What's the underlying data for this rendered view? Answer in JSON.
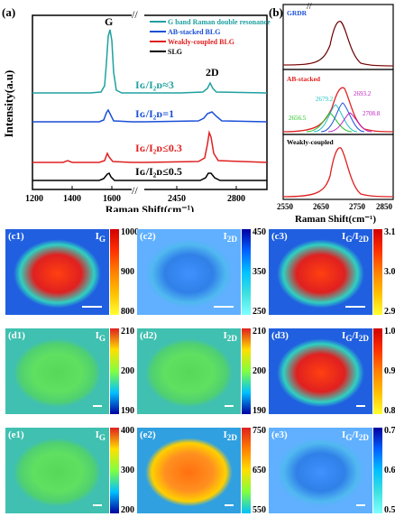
{
  "panel_a": {
    "label": "(a)",
    "ylabel": "Intensity(a.u)",
    "xlabel": "Raman Shift(cm⁻¹)",
    "xticks": [
      "1200",
      "1400",
      "1600",
      "2450",
      "2800"
    ],
    "peak_g": "G",
    "peak_2d": "2D",
    "break_mark": "//",
    "legend": [
      {
        "text": "G band Raman double resonance",
        "color": "#20a0a0"
      },
      {
        "text": "AB-stacked BLG",
        "color": "#1a4fd6"
      },
      {
        "text": "Weakly-coupled BLG",
        "color": "#e02020"
      },
      {
        "text": "SLG",
        "color": "#000000"
      }
    ],
    "ratios": [
      {
        "text": "Iɢ/I₂ᴅ≈3",
        "color": "#20a0a0"
      },
      {
        "text": "Iɢ/I₂ᴅ=1",
        "color": "#1a4fd6"
      },
      {
        "text": "Iɢ/I₂ᴅ≤0.3",
        "color": "#e02020"
      },
      {
        "text": "Iɢ/I₂ᴅ≤0.5",
        "color": "#000000"
      }
    ]
  },
  "panel_b": {
    "label": "(b)",
    "xlabel": "Raman Shift(cm⁻¹)",
    "xticks": [
      "2550",
      "2650",
      "2750",
      "2850"
    ],
    "break_mark": "//",
    "subpanels": [
      {
        "title": "GRDR",
        "color": "#1a4fd6"
      },
      {
        "title": "AB-stacked",
        "color": "#e02020"
      },
      {
        "title": "Weakly-coupled",
        "color": "#000000"
      }
    ],
    "peak_labels": [
      {
        "text": "2679.2",
        "color": "#20c0c0"
      },
      {
        "text": "2693.2",
        "color": "#c020c0"
      },
      {
        "text": "2656.5",
        "color": "#20c020"
      },
      {
        "text": "2708.8",
        "color": "#c020c0"
      }
    ]
  },
  "maps": [
    {
      "label": "(c1)",
      "tag": "I",
      "sub": "G",
      "ticks": [
        "1000",
        "900",
        "800"
      ],
      "cmap": "hot"
    },
    {
      "label": "(c2)",
      "tag": "I",
      "sub": "2D",
      "ticks": [
        "450",
        "350",
        "250"
      ],
      "cmap": "cool"
    },
    {
      "label": "(c3)",
      "tag": "I",
      "sub": "G",
      "tag2": "/I",
      "sub2": "2D",
      "ticks": [
        "3.1",
        "3.0",
        "2.9"
      ],
      "cmap": "hot"
    },
    {
      "label": "(d1)",
      "tag": "I",
      "sub": "G",
      "ticks": [
        "210",
        "200",
        "190"
      ],
      "cmap": "green"
    },
    {
      "label": "(d2)",
      "tag": "I",
      "sub": "2D",
      "ticks": [
        "210",
        "200",
        "190"
      ],
      "cmap": "green"
    },
    {
      "label": "(d3)",
      "tag": "I",
      "sub": "G",
      "tag2": "/I",
      "sub2": "2D",
      "ticks": [
        "1.0",
        "0.9",
        "0.8"
      ],
      "cmap": "hot"
    },
    {
      "label": "(e1)",
      "tag": "I",
      "sub": "G",
      "ticks": [
        "400",
        "300",
        "200"
      ],
      "cmap": "green"
    },
    {
      "label": "(e2)",
      "tag": "I",
      "sub": "2D",
      "ticks": [
        "750",
        "650",
        "550"
      ],
      "cmap": "warm"
    },
    {
      "label": "(e3)",
      "tag": "I",
      "sub": "G",
      "tag2": "/I",
      "sub2": "2D",
      "ticks": [
        "0.7",
        "0.6",
        "0.5"
      ],
      "cmap": "cool"
    }
  ]
}
